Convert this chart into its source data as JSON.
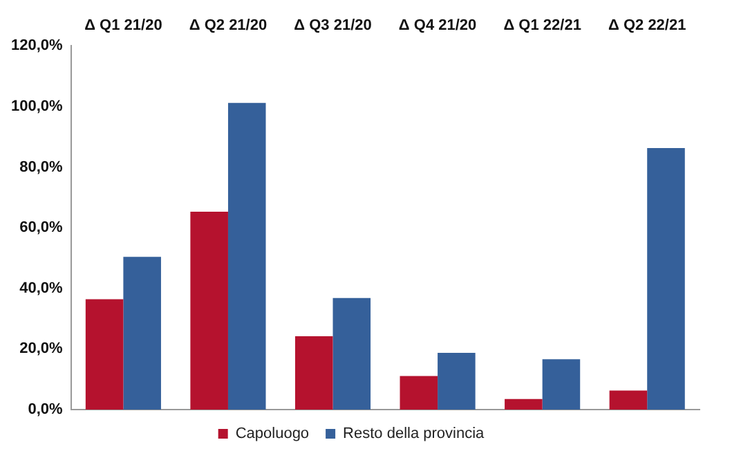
{
  "chart_data": {
    "type": "bar",
    "categories": [
      "Δ Q1 21/20",
      "Δ Q2 21/20",
      "Δ Q3 21/20",
      "Δ Q4 21/20",
      "Δ Q1 22/21",
      "Δ Q2 22/21"
    ],
    "series": [
      {
        "name": "Capoluogo",
        "color": "#b5122e",
        "values": [
          36.4,
          65.3,
          24.2,
          11.1,
          3.5,
          6.3
        ]
      },
      {
        "name": "Resto della provincia",
        "color": "#35609a",
        "values": [
          50.4,
          101.2,
          36.8,
          18.7,
          16.6,
          86.3
        ]
      }
    ],
    "ylim": [
      0,
      120
    ],
    "yticks": [
      {
        "value": 0,
        "label": "0,0%"
      },
      {
        "value": 20,
        "label": "20,0%"
      },
      {
        "value": 40,
        "label": "40,0%"
      },
      {
        "value": 60,
        "label": "60,0%"
      },
      {
        "value": 80,
        "label": "80,0%"
      },
      {
        "value": 100,
        "label": "100,0%"
      },
      {
        "value": 120,
        "label": "120,0%"
      }
    ],
    "grid": false,
    "legend": "bottom"
  }
}
